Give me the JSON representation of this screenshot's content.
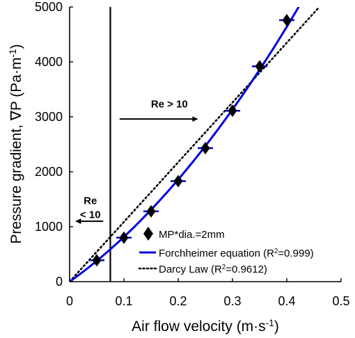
{
  "chart_data": {
    "type": "scatter",
    "xlabel": "Air flow velocity (m·s",
    "xlabel_sup": "-1",
    "xlabel_end": ")",
    "ylabel": "Pressure gradient, ∇P (Pa·m",
    "ylabel_sup": "-1",
    "ylabel_end": ")",
    "xlim": [
      0,
      0.5
    ],
    "ylim": [
      0,
      5000
    ],
    "xticks": [
      0,
      0.1,
      0.2,
      0.3,
      0.4,
      0.5
    ],
    "xtick_labels": [
      "0",
      "0.1",
      "0.2",
      "0.3",
      "0.4",
      "0.5"
    ],
    "yticks": [
      0,
      1000,
      2000,
      3000,
      4000,
      5000
    ],
    "ytick_labels": [
      "0",
      "1000",
      "2000",
      "3000",
      "4000",
      "5000"
    ],
    "grid": false,
    "legend_position": "bottom-right",
    "series": [
      {
        "name": "MP*dia.=2mm",
        "kind": "marker",
        "marker": "diamond",
        "color": "#000000",
        "x": [
          0.05,
          0.1,
          0.15,
          0.2,
          0.25,
          0.3,
          0.35,
          0.4
        ],
        "y": [
          390,
          800,
          1280,
          1830,
          2430,
          3110,
          3920,
          4760
        ],
        "error_color": "#0000cc"
      },
      {
        "name": "Forchheimer equation (R",
        "name_sup": "2",
        "name_end": "=0.999)",
        "kind": "curve",
        "color": "#0000dd",
        "a": 7000,
        "b": 11500,
        "x_range": [
          0,
          0.422
        ]
      },
      {
        "name": "Darcy Law (R",
        "name_sup": "2",
        "name_end": "=0.9612)",
        "kind": "dotted-line",
        "color": "#000000",
        "slope": 10870,
        "x_range": [
          0,
          0.46
        ]
      }
    ],
    "vline": {
      "x": 0.075,
      "color": "#000000"
    },
    "annotations": [
      {
        "text": "Re > 10",
        "x": 0.135,
        "y": 3170,
        "arrow": "right",
        "arrow_x": [
          0.092,
          0.235
        ],
        "arrow_y": 2960
      },
      {
        "line1": "Re",
        "line2": "< 10",
        "x": 0.033,
        "y": 1410,
        "arrow": "left",
        "arrow_x": [
          0.062,
          0.012
        ],
        "arrow_y": 1100
      }
    ]
  }
}
